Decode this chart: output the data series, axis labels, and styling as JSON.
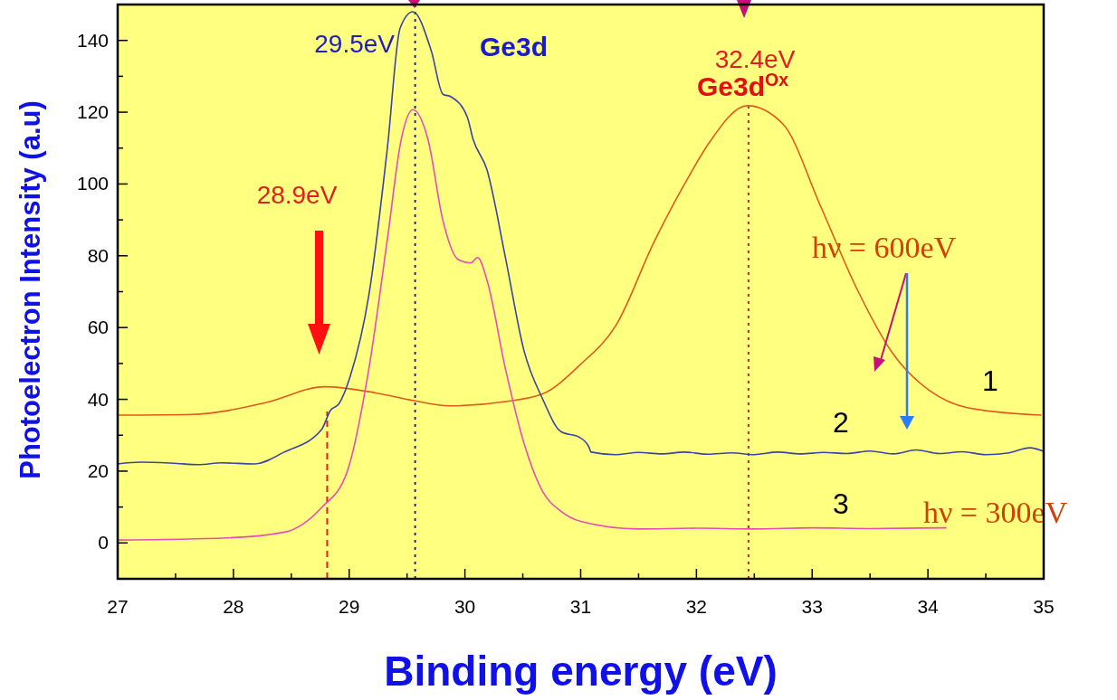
{
  "chart_data": {
    "type": "line",
    "xlabel": "Binding energy (eV)",
    "ylabel": "Photoelectron Intensity (a.u)",
    "xlim": [
      27,
      35
    ],
    "ylim": [
      -10,
      150
    ],
    "xticks": [
      27,
      {
        "value": 27.5,
        "label": null
      },
      28,
      {
        "value": 28.5,
        "label": null
      },
      29,
      {
        "value": 29.5,
        "label": null
      },
      30,
      {
        "value": 30.5,
        "label": null
      },
      31,
      {
        "value": 31.5,
        "label": null
      },
      32,
      {
        "value": 32.5,
        "label": null
      },
      33,
      {
        "value": 33.5,
        "label": null
      },
      34,
      {
        "value": 34.5,
        "label": null
      },
      35
    ],
    "yticks": [
      0,
      {
        "value": 10,
        "label": null
      },
      20,
      {
        "value": 30,
        "label": null
      },
      40,
      {
        "value": 50,
        "label": null
      },
      60,
      {
        "value": 70,
        "label": null
      },
      80,
      {
        "value": 90,
        "label": null
      },
      100,
      {
        "value": 110,
        "label": null
      },
      120,
      {
        "value": 130,
        "label": null
      },
      140
    ],
    "grid": false,
    "legend": false,
    "marker": "none",
    "line_style": "solid",
    "series": [
      {
        "name": "1",
        "color": "#e05a1c",
        "x": [
          27,
          27.64,
          28.27,
          28.79,
          29.23,
          29.55,
          29.87,
          30.35,
          30.67,
          30.99,
          31.31,
          31.63,
          31.95,
          32.11,
          32.44,
          32.75,
          33.07,
          33.38,
          33.7,
          34.02,
          34.34,
          34.98
        ],
        "values": [
          35.6,
          35.8,
          39,
          43.5,
          41.8,
          39.7,
          38.2,
          39.4,
          41.5,
          49.5,
          60.9,
          83.6,
          103,
          111.5,
          121.8,
          116.6,
          94,
          71.2,
          52.6,
          42.3,
          37.7,
          35.6
        ]
      },
      {
        "name": "2",
        "color": "#3a44a8",
        "x": [
          27,
          27.2,
          27.48,
          27.7,
          27.9,
          28.18,
          28.44,
          28.76,
          28.84,
          28.91,
          29.01,
          29.17,
          29.33,
          29.44,
          29.55,
          29.71,
          29.81,
          29.88,
          30.02,
          30.07,
          30.19,
          30.35,
          30.51,
          30.67,
          30.83,
          30.99,
          31.07,
          31.09,
          31.3,
          31.5,
          31.7,
          31.9,
          32.1,
          32.3,
          32.5,
          32.7,
          32.9,
          33.1,
          33.3,
          33.5,
          33.7,
          33.9,
          34.1,
          34.3,
          34.5,
          34.7,
          34.88,
          35
        ],
        "values": [
          22,
          22.5,
          22.2,
          21.8,
          22.3,
          22,
          25.3,
          31.5,
          37,
          38.7,
          46.5,
          69,
          110,
          143.4,
          148,
          137,
          125,
          124.3,
          118.7,
          112.5,
          104,
          79.5,
          53.6,
          40.2,
          31,
          29.4,
          26.8,
          25.3,
          24.6,
          25.2,
          24.8,
          25.3,
          24.7,
          25.1,
          24.6,
          25.3,
          24.8,
          25.2,
          24.9,
          25.6,
          24.8,
          25.9,
          24.9,
          25.4,
          24.6,
          25.1,
          26.5,
          25.5
        ]
      },
      {
        "name": "3",
        "color": "#e84cb8",
        "x": [
          27,
          27.95,
          28.44,
          28.76,
          28.98,
          29.17,
          29.33,
          29.45,
          29.55,
          29.68,
          29.81,
          29.94,
          30.05,
          30.11,
          30.19,
          30.35,
          30.51,
          30.67,
          30.83,
          31,
          31.5,
          32,
          32.5,
          33,
          33.5,
          34.16
        ],
        "values": [
          0.8,
          1.4,
          3,
          9.8,
          19.6,
          48.5,
          84.6,
          112.5,
          120.7,
          112.5,
          89.8,
          79,
          78,
          79.5,
          73.3,
          48.5,
          27.8,
          14.4,
          8.8,
          6,
          3.9,
          4.1,
          3.9,
          4.2,
          4,
          4.2
        ]
      }
    ],
    "ref_lines": [
      {
        "axis": "x",
        "value": 28.81,
        "label": "28.9eV",
        "color": "#e02020",
        "line_style": "dashed"
      },
      {
        "axis": "x",
        "value": 29.57,
        "label": "29.5eV",
        "color": "#2020c0",
        "line_style": "dotted"
      },
      {
        "axis": "x",
        "value": 32.45,
        "label": "32.4eV",
        "color": "#e02020",
        "line_style": "dotted"
      }
    ],
    "annotations": [
      "Ge3d",
      "Ge3d$^{Ox}$",
      "hν = 600eV",
      "hν = 300eV"
    ]
  }
}
